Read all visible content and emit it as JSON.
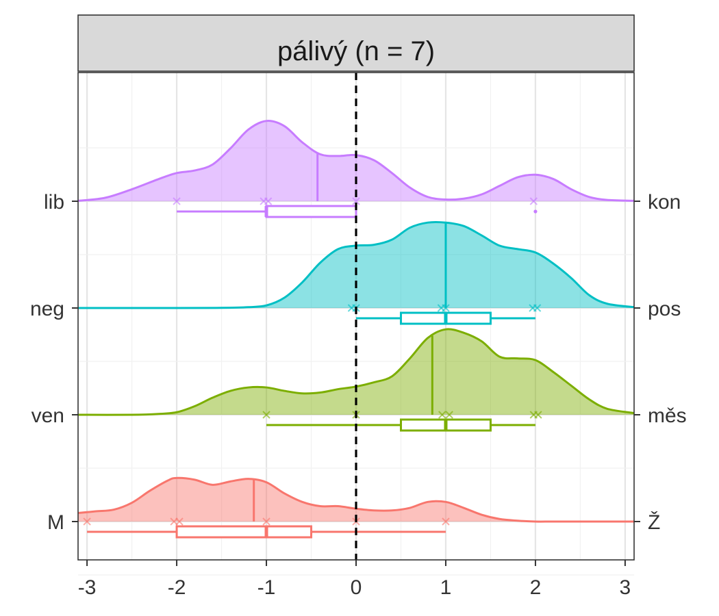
{
  "chart_data": {
    "type": "ridgeline",
    "title": "pálivý (n = 7)",
    "xlabel": "",
    "ylabel": "",
    "xlim": [
      -3.1,
      3.1
    ],
    "x_ticks": [
      -3,
      -2,
      -1,
      0,
      1,
      2,
      3
    ],
    "x_tick_labels": [
      "-3",
      "-2",
      "-1",
      "0",
      "1",
      "2",
      "3"
    ],
    "reference_line": {
      "x": 0,
      "style": "dashed",
      "color": "#000000"
    },
    "grid": true,
    "legend": "none",
    "rows": [
      {
        "left_label": "lib",
        "right_label": "kon",
        "color": "#C77CFF",
        "mean": -0.43,
        "points": [
          -2,
          -1.03,
          -0.98,
          0,
          1.98
        ],
        "box": {
          "whisker_low": -2,
          "q1": -1.0,
          "median": -1.0,
          "q3": 0.0,
          "whisker_high": 0.0,
          "outliers": [
            2
          ]
        },
        "density": {
          "x": [
            -3.1,
            -2.8,
            -2.5,
            -2.2,
            -2.0,
            -1.8,
            -1.6,
            -1.4,
            -1.2,
            -1.0,
            -0.8,
            -0.6,
            -0.4,
            -0.2,
            0.0,
            0.2,
            0.4,
            0.6,
            0.8,
            1.0,
            1.2,
            1.4,
            1.6,
            1.8,
            2.0,
            2.2,
            2.4,
            2.6,
            2.8,
            3.1
          ],
          "y": [
            0.005,
            0.04,
            0.14,
            0.26,
            0.33,
            0.36,
            0.43,
            0.62,
            0.84,
            0.94,
            0.88,
            0.69,
            0.55,
            0.53,
            0.54,
            0.48,
            0.33,
            0.16,
            0.05,
            0.02,
            0.03,
            0.08,
            0.18,
            0.28,
            0.31,
            0.26,
            0.14,
            0.05,
            0.015,
            0.005
          ]
        }
      },
      {
        "left_label": "neg",
        "right_label": "pos",
        "color": "#00BFC4",
        "mean": 1.0,
        "points": [
          -0.05,
          0,
          0.95,
          1.0,
          1.97,
          2.02
        ],
        "box": {
          "whisker_low": 0.0,
          "q1": 0.5,
          "median": 1.0,
          "q3": 1.5,
          "whisker_high": 2.0,
          "outliers": []
        },
        "density": {
          "x": [
            -3.1,
            -2.0,
            -1.5,
            -1.2,
            -1.0,
            -0.8,
            -0.6,
            -0.4,
            -0.2,
            0.0,
            0.2,
            0.4,
            0.6,
            0.8,
            1.0,
            1.2,
            1.4,
            1.6,
            1.8,
            2.0,
            2.2,
            2.4,
            2.6,
            2.8,
            3.1
          ],
          "y": [
            0.0,
            0.0,
            0.002,
            0.01,
            0.03,
            0.12,
            0.3,
            0.53,
            0.69,
            0.73,
            0.74,
            0.8,
            0.94,
            1.0,
            1.0,
            0.96,
            0.85,
            0.73,
            0.69,
            0.65,
            0.52,
            0.35,
            0.15,
            0.05,
            0.01
          ]
        }
      },
      {
        "left_label": "ven",
        "right_label": "měs",
        "color": "#7CAE00",
        "mean": 0.85,
        "points": [
          -1,
          0,
          0.96,
          1.04,
          1.98,
          2.03
        ],
        "box": {
          "whisker_low": -1.0,
          "q1": 0.5,
          "median": 1.0,
          "q3": 1.5,
          "whisker_high": 2.0,
          "outliers": []
        },
        "density": {
          "x": [
            -3.1,
            -2.5,
            -2.2,
            -2.0,
            -1.8,
            -1.6,
            -1.4,
            -1.2,
            -1.0,
            -0.8,
            -0.6,
            -0.4,
            -0.2,
            0.0,
            0.2,
            0.4,
            0.6,
            0.8,
            1.0,
            1.2,
            1.4,
            1.6,
            1.8,
            2.0,
            2.2,
            2.4,
            2.6,
            2.8,
            3.1
          ],
          "y": [
            0.0,
            0.0,
            0.01,
            0.03,
            0.1,
            0.2,
            0.28,
            0.32,
            0.32,
            0.28,
            0.25,
            0.26,
            0.3,
            0.33,
            0.38,
            0.45,
            0.66,
            0.9,
            1.0,
            0.96,
            0.86,
            0.68,
            0.66,
            0.64,
            0.5,
            0.34,
            0.18,
            0.07,
            0.02
          ]
        }
      },
      {
        "left_label": "M",
        "right_label": "Ž",
        "color": "#F8766D",
        "mean": -1.14,
        "points": [
          -3,
          -2.03,
          -1.97,
          -1,
          0,
          1
        ],
        "box": {
          "whisker_low": -3.0,
          "q1": -2.0,
          "median": -1.0,
          "q3": -0.5,
          "whisker_high": 1.0,
          "outliers": []
        },
        "density": {
          "x": [
            -3.1,
            -2.9,
            -2.7,
            -2.5,
            -2.3,
            -2.1,
            -2.0,
            -1.8,
            -1.6,
            -1.4,
            -1.2,
            -1.0,
            -0.8,
            -0.6,
            -0.4,
            -0.2,
            0.0,
            0.2,
            0.4,
            0.6,
            0.8,
            1.0,
            1.2,
            1.4,
            1.6,
            1.8,
            2.0,
            2.2,
            2.6,
            3.1
          ],
          "y": [
            0.1,
            0.12,
            0.14,
            0.22,
            0.36,
            0.48,
            0.51,
            0.49,
            0.43,
            0.47,
            0.5,
            0.46,
            0.33,
            0.23,
            0.18,
            0.18,
            0.15,
            0.13,
            0.13,
            0.16,
            0.23,
            0.23,
            0.16,
            0.08,
            0.03,
            0.01,
            0.0,
            0.0,
            0.0,
            0.0
          ]
        }
      }
    ]
  }
}
